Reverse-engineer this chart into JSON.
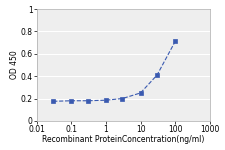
{
  "x": [
    0.03,
    0.1,
    0.3,
    1,
    3,
    10,
    30,
    100
  ],
  "y": [
    0.175,
    0.18,
    0.18,
    0.185,
    0.2,
    0.25,
    0.41,
    0.71
  ],
  "line_color": "#3a5ab0",
  "marker_color": "#3a5ab0",
  "marker": "s",
  "marker_size": 2.5,
  "line_width": 0.8,
  "line_style": "--",
  "xlabel": "Recombinant ProteinConcentration(ng/ml)",
  "ylabel": "OD 450",
  "xlim": [
    0.01,
    1000
  ],
  "ylim": [
    0,
    1
  ],
  "yticks": [
    0,
    0.2,
    0.4,
    0.6,
    0.8,
    1
  ],
  "ytick_labels": [
    "0",
    "0.2",
    "0.4",
    "0.6",
    "0.8",
    "1"
  ],
  "xticks": [
    0.01,
    0.1,
    1,
    10,
    100,
    1000
  ],
  "xtick_labels": [
    "0.01",
    "0.1",
    "1",
    "10",
    "100",
    "1000"
  ],
  "label_fontsize": 5.5,
  "tick_fontsize": 5.5,
  "background_color": "#eeeeee",
  "grid_color": "#ffffff",
  "spine_color": "#aaaaaa"
}
